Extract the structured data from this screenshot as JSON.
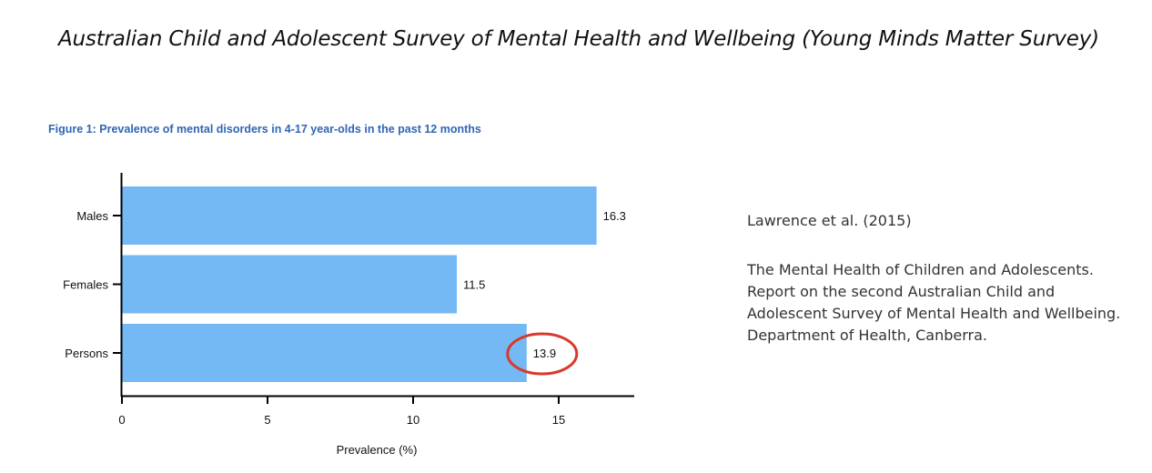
{
  "slide": {
    "title": "Australian Child and Adolescent Survey of Mental Health and Wellbeing (Young Minds Matter Survey)"
  },
  "figure": {
    "caption": "Figure 1: Prevalence of mental disorders in 4-17 year-olds in the past 12 months"
  },
  "chart_data": {
    "type": "bar",
    "orientation": "horizontal",
    "categories": [
      "Males",
      "Females",
      "Persons"
    ],
    "values": [
      16.3,
      11.5,
      13.9
    ],
    "value_labels": [
      "16.3",
      "11.5",
      "13.9"
    ],
    "xlabel": "Prevalence (%)",
    "ylabel": "",
    "xlim": [
      0,
      17.5
    ],
    "xticks": [
      0,
      5,
      10,
      15
    ],
    "xtick_labels": [
      "0",
      "5",
      "10",
      "15"
    ],
    "grid": false,
    "bar_color": "#74b8f4",
    "highlight": {
      "category": "Persons",
      "shape": "circle",
      "color": "#d83a2b"
    }
  },
  "citation": {
    "author": "Lawrence et al. (2015)",
    "reference": "The Mental Health of Children and Adolescents. Report on the second Australian Child and Adolescent Survey of Mental Health and Wellbeing. Department of Health, Canberra."
  }
}
